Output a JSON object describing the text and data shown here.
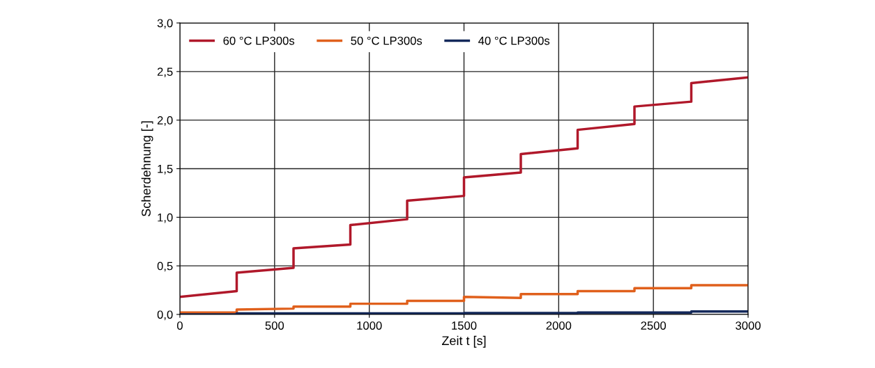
{
  "chart_data": {
    "type": "line",
    "xlabel": "Zeit t [s]",
    "ylabel": "Scherdehnung [-]",
    "xlim": [
      0,
      3000
    ],
    "xticks": [
      0,
      500,
      1000,
      1500,
      2000,
      2500,
      3000
    ],
    "ylim": [
      0,
      3
    ],
    "yticks": [
      {
        "value": 0,
        "label": "0,0"
      },
      {
        "value": 0.5,
        "label": "0,5"
      },
      {
        "value": 1,
        "label": "1,0"
      },
      {
        "value": 1.5,
        "label": "1,5"
      },
      {
        "value": 2,
        "label": "2,0"
      },
      {
        "value": 2.5,
        "label": "2,5"
      },
      {
        "value": 3,
        "label": "3,0"
      }
    ],
    "grid": true,
    "legend": "top left",
    "marker": "none",
    "line_style": "solid",
    "series": [
      {
        "name": "60 °C LP300s",
        "color": "#b0182a",
        "x": [
          0,
          300,
          300,
          600,
          600,
          900,
          900,
          1200,
          1200,
          1500,
          1500,
          1800,
          1800,
          2100,
          2100,
          2400,
          2400,
          2700,
          2700,
          3000
        ],
        "values": [
          0.18,
          0.24,
          0.43,
          0.48,
          0.68,
          0.72,
          0.92,
          0.98,
          1.17,
          1.22,
          1.41,
          1.46,
          1.65,
          1.71,
          1.9,
          1.96,
          2.14,
          2.19,
          2.38,
          2.44
        ]
      },
      {
        "name": "50 °C LP300s",
        "color": "#e0601c",
        "x": [
          0,
          300,
          300,
          600,
          600,
          900,
          900,
          1200,
          1200,
          1500,
          1500,
          1800,
          1800,
          2100,
          2100,
          2400,
          2400,
          2700,
          2700,
          3000
        ],
        "values": [
          0.02,
          0.02,
          0.05,
          0.06,
          0.08,
          0.08,
          0.11,
          0.11,
          0.14,
          0.14,
          0.18,
          0.17,
          0.21,
          0.21,
          0.24,
          0.24,
          0.27,
          0.27,
          0.3,
          0.3
        ]
      },
      {
        "name": "40 °C LP300s",
        "color": "#13285a",
        "x": [
          0,
          300,
          300,
          1500,
          1500,
          2100,
          2100,
          2700,
          2700,
          3000
        ],
        "values": [
          0.0,
          0.0,
          0.01,
          0.01,
          0.015,
          0.015,
          0.02,
          0.02,
          0.03,
          0.03
        ]
      }
    ]
  }
}
